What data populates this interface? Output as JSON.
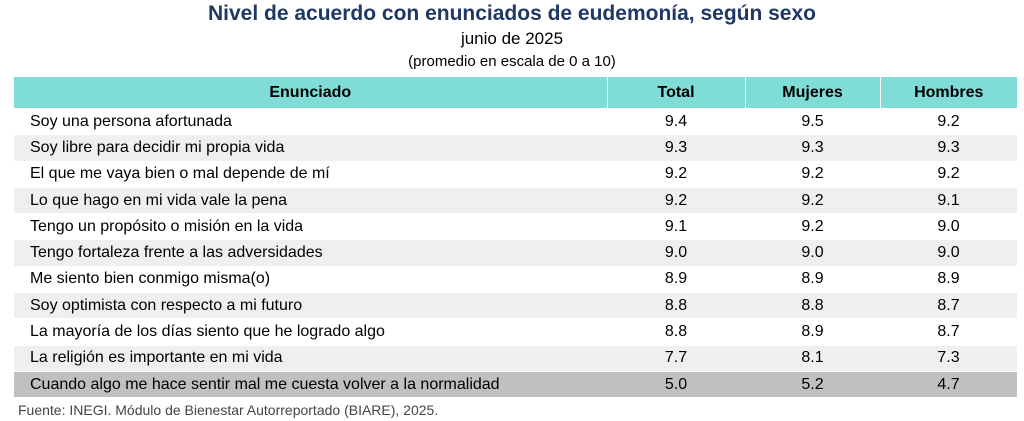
{
  "header": {
    "title": "Nivel de acuerdo con enunciados de eudemonía, según sexo",
    "subtitle": "junio de 2025",
    "note": "(promedio en escala de 0 a 10)"
  },
  "table": {
    "columns": [
      "Enunciado",
      "Total",
      "Mujeres",
      "Hombres"
    ],
    "rows": [
      [
        "Soy una persona afortunada",
        "9.4",
        "9.5",
        "9.2"
      ],
      [
        "Soy libre para decidir mi propia vida",
        "9.3",
        "9.3",
        "9.3"
      ],
      [
        "El que me vaya bien o mal depende de mí",
        "9.2",
        "9.2",
        "9.2"
      ],
      [
        "Lo que hago en mi vida vale la pena",
        "9.2",
        "9.2",
        "9.1"
      ],
      [
        "Tengo un propósito o misión en la vida",
        "9.1",
        "9.2",
        "9.0"
      ],
      [
        "Tengo fortaleza frente a las adversidades",
        "9.0",
        "9.0",
        "9.0"
      ],
      [
        "Me siento bien conmigo misma(o)",
        "8.9",
        "8.9",
        "8.9"
      ],
      [
        "Soy optimista con respecto a mi futuro",
        "8.8",
        "8.8",
        "8.7"
      ],
      [
        "La mayoría de los días siento que he logrado algo",
        "8.8",
        "8.9",
        "8.7"
      ],
      [
        "La religión es importante en mi vida",
        "7.7",
        "8.1",
        "7.3"
      ],
      [
        "Cuando algo me hace sentir mal me cuesta volver a la normalidad",
        "5.0",
        "5.2",
        "4.7"
      ]
    ]
  },
  "footer": {
    "source": "Fuente: INEGI. Módulo de Bienestar Autorreportado (BIARE), 2025."
  }
}
